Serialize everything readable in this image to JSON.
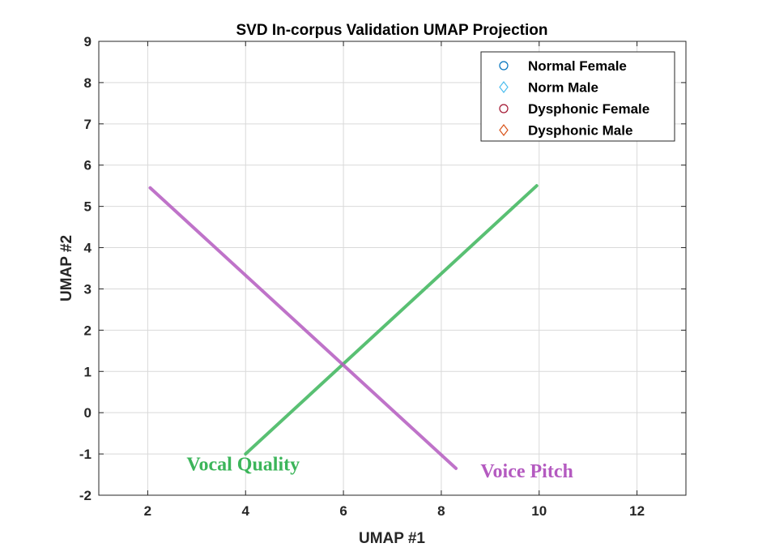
{
  "chart_data": {
    "type": "line",
    "title": "SVD In-corpus Validation UMAP Projection",
    "xlabel": "UMAP #1",
    "ylabel": "UMAP #2",
    "xlim": [
      1,
      13
    ],
    "ylim": [
      -2,
      9
    ],
    "xticks": [
      2,
      4,
      6,
      8,
      10,
      12
    ],
    "yticks": [
      -2,
      -1,
      0,
      1,
      2,
      3,
      4,
      5,
      6,
      7,
      8,
      9
    ],
    "grid": true,
    "legend_position": "top-right",
    "legend": [
      {
        "label": "Normal Female",
        "marker": "circle",
        "color": "#0072BD"
      },
      {
        "label": "Norm Male",
        "marker": "diamond",
        "color": "#4DBEEE"
      },
      {
        "label": "Dysphonic Female",
        "marker": "circle",
        "color": "#A2142F"
      },
      {
        "label": "Dysphonic Male",
        "marker": "diamond",
        "color": "#D95319"
      }
    ],
    "series": [
      {
        "name": "Vocal Quality",
        "color": "#3CB55A",
        "x": [
          4.0,
          9.95
        ],
        "y": [
          -1.0,
          5.5
        ]
      },
      {
        "name": "Voice Pitch",
        "color": "#B45AC0",
        "x": [
          2.05,
          8.3
        ],
        "y": [
          5.45,
          -1.35
        ]
      }
    ],
    "annotations": [
      {
        "text": "Vocal Quality",
        "x": 3.95,
        "y": -1.4,
        "color": "#3CB55A"
      },
      {
        "text": "Voice Pitch",
        "x": 9.75,
        "y": -1.57,
        "color": "#B45AC0"
      }
    ]
  }
}
